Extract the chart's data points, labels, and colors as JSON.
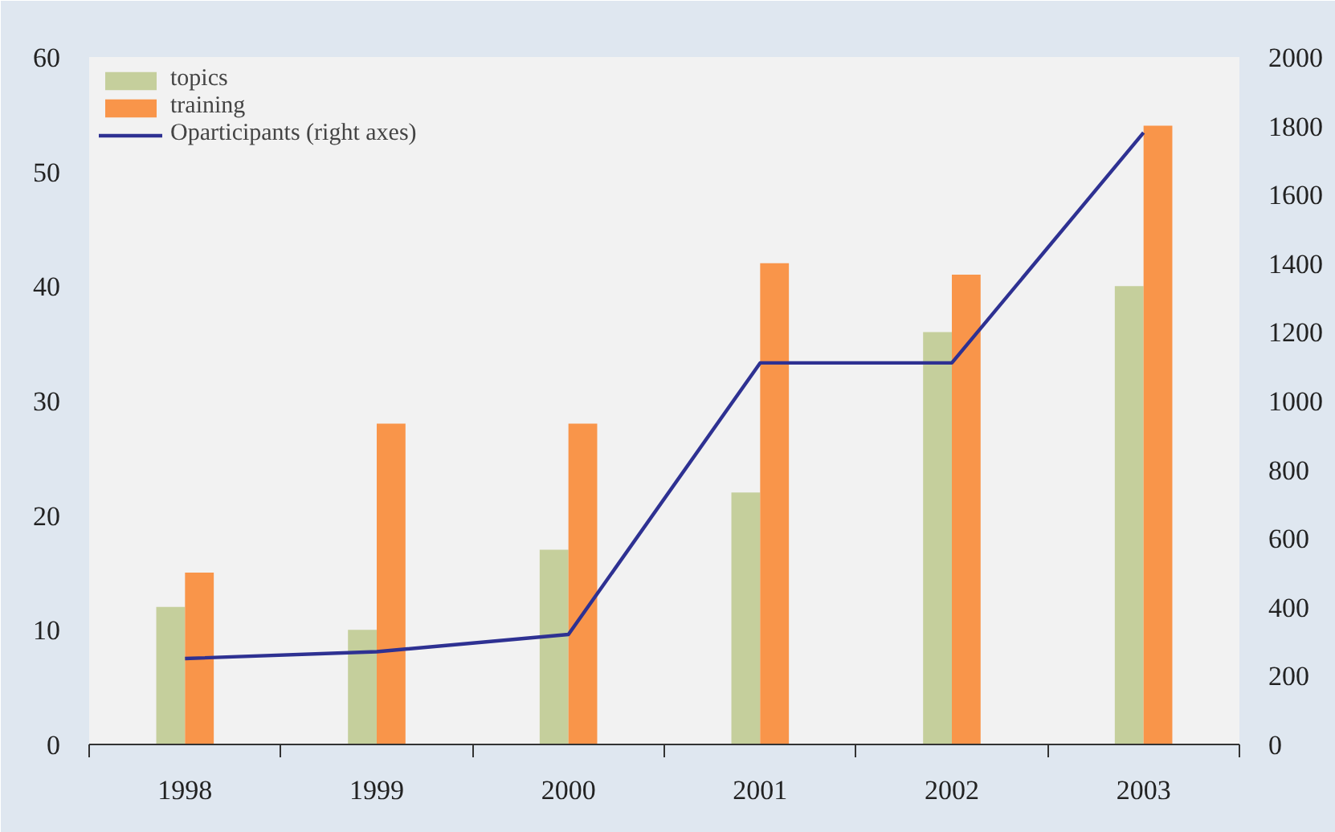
{
  "chart_data": {
    "type": "bar",
    "categories": [
      "1998",
      "1999",
      "2000",
      "2001",
      "2002",
      "2003"
    ],
    "series": [
      {
        "name": "topics",
        "color": "#c5cf9c",
        "values": [
          12,
          10,
          17,
          22,
          36,
          40
        ]
      },
      {
        "name": "training",
        "color": "#f9954a",
        "values": [
          15,
          28,
          28,
          42,
          41,
          54
        ]
      },
      {
        "name": "Oparticipants (right axes)",
        "type": "line",
        "axis": "y2",
        "color": "#2e3192",
        "values": [
          250,
          270,
          320,
          1110,
          1110,
          1780
        ]
      }
    ],
    "ylim": [
      0,
      60
    ],
    "yticks": [
      0,
      10,
      20,
      30,
      40,
      50,
      60
    ],
    "y2lim": [
      0,
      2000
    ],
    "y2ticks": [
      0,
      200,
      400,
      600,
      800,
      1000,
      1200,
      1400,
      1600,
      1800,
      2000
    ],
    "legend": "top left",
    "grid": false,
    "marker": "none",
    "line_style": "solid"
  }
}
